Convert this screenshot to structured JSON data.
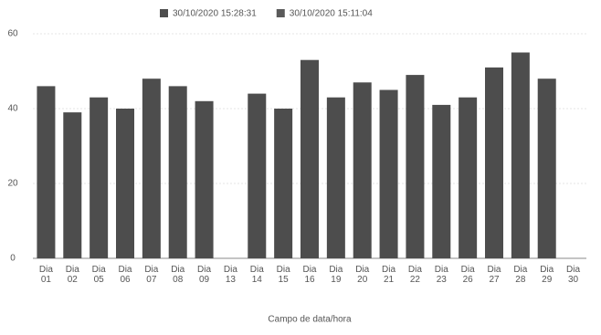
{
  "chart_data": {
    "type": "bar",
    "series": [
      {
        "name": "30/10/2020 15:28:31",
        "color": "#4d4d4d",
        "values": [
          46,
          39,
          43,
          40,
          48,
          46,
          42,
          null,
          44,
          40,
          53,
          43,
          47,
          45,
          49,
          41,
          43,
          51,
          55,
          48,
          null
        ]
      },
      {
        "name": "30/10/2020 15:11:04",
        "color": "#5a5a5a",
        "values": [
          null,
          null,
          null,
          null,
          null,
          null,
          null,
          null,
          null,
          null,
          null,
          null,
          null,
          null,
          null,
          null,
          null,
          null,
          null,
          null,
          null
        ]
      }
    ],
    "categories": [
      "Dia 01",
      "Dia 02",
      "Dia 05",
      "Dia 06",
      "Dia 07",
      "Dia 08",
      "Dia 09",
      "Dia 13",
      "Dia 14",
      "Dia 15",
      "Dia 16",
      "Dia 19",
      "Dia 20",
      "Dia 21",
      "Dia 22",
      "Dia 23",
      "Dia 26",
      "Dia 27",
      "Dia 28",
      "Dia 29",
      "Dia 30"
    ],
    "x_label": "Campo de data/hora",
    "ylim": [
      0,
      60
    ],
    "yticks": [
      0,
      20,
      40,
      60
    ],
    "grid": true
  }
}
